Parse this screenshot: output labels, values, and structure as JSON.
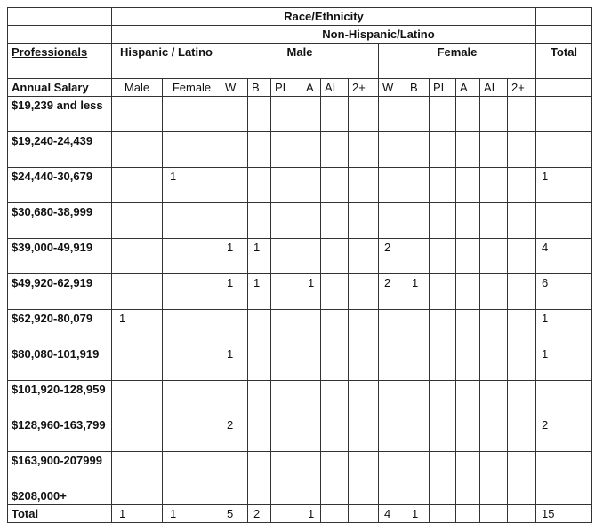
{
  "header": {
    "race_ethnicity": "Race/Ethnicity",
    "non_hispanic": "Non-Hispanic/Latino",
    "professionals": "Professionals",
    "hispanic": "Hispanic / Latino",
    "male": "Male",
    "female": "Female",
    "total": "Total",
    "annual_salary": "Annual Salary",
    "sub": [
      "Male",
      "Female",
      "W",
      "B",
      "PI",
      "A",
      "AI",
      "2+",
      "W",
      "B",
      "PI",
      "A",
      "AI",
      "2+"
    ]
  },
  "rows": [
    {
      "label": "$19,239 and less",
      "cells": [
        "",
        "",
        "",
        "",
        "",
        "",
        "",
        "",
        "",
        "",
        "",
        "",
        "",
        "",
        ""
      ]
    },
    {
      "label": "$19,240-24,439",
      "cells": [
        "",
        "",
        "",
        "",
        "",
        "",
        "",
        "",
        "",
        "",
        "",
        "",
        "",
        "",
        ""
      ]
    },
    {
      "label": "$24,440-30,679",
      "cells": [
        "",
        "1",
        "",
        "",
        "",
        "",
        "",
        "",
        "",
        "",
        "",
        "",
        "",
        "",
        "1"
      ]
    },
    {
      "label": "$30,680-38,999",
      "cells": [
        "",
        "",
        "",
        "",
        "",
        "",
        "",
        "",
        "",
        "",
        "",
        "",
        "",
        "",
        ""
      ]
    },
    {
      "label": "$39,000-49,919",
      "cells": [
        "",
        "",
        "1",
        "1",
        "",
        "",
        "",
        "",
        "2",
        "",
        "",
        "",
        "",
        "",
        "4"
      ]
    },
    {
      "label": "$49,920-62,919",
      "cells": [
        "",
        "",
        "1",
        "1",
        "",
        "1",
        "",
        "",
        "2",
        "1",
        "",
        "",
        "",
        "",
        "6"
      ]
    },
    {
      "label": "$62,920-80,079",
      "cells": [
        "1",
        "",
        "",
        "",
        "",
        "",
        "",
        "",
        "",
        "",
        "",
        "",
        "",
        "",
        "1"
      ]
    },
    {
      "label": "$80,080-101,919",
      "cells": [
        "",
        "",
        "1",
        "",
        "",
        "",
        "",
        "",
        "",
        "",
        "",
        "",
        "",
        "",
        "1"
      ]
    },
    {
      "label": "$101,920-128,959",
      "cells": [
        "",
        "",
        "",
        "",
        "",
        "",
        "",
        "",
        "",
        "",
        "",
        "",
        "",
        "",
        ""
      ]
    },
    {
      "label": "$128,960-163,799",
      "cells": [
        "",
        "",
        "2",
        "",
        "",
        "",
        "",
        "",
        "",
        "",
        "",
        "",
        "",
        "",
        "2"
      ]
    },
    {
      "label": "$163,900-207999",
      "cells": [
        "",
        "",
        "",
        "",
        "",
        "",
        "",
        "",
        "",
        "",
        "",
        "",
        "",
        "",
        ""
      ]
    },
    {
      "label": "$208,000+",
      "cells": [
        "",
        "",
        "",
        "",
        "",
        "",
        "",
        "",
        "",
        "",
        "",
        "",
        "",
        "",
        ""
      ]
    },
    {
      "label": "Total",
      "cells": [
        "1",
        "1",
        "5",
        "2",
        "",
        "1",
        "",
        "",
        "4",
        "1",
        "",
        "",
        "",
        "",
        "15"
      ]
    }
  ]
}
